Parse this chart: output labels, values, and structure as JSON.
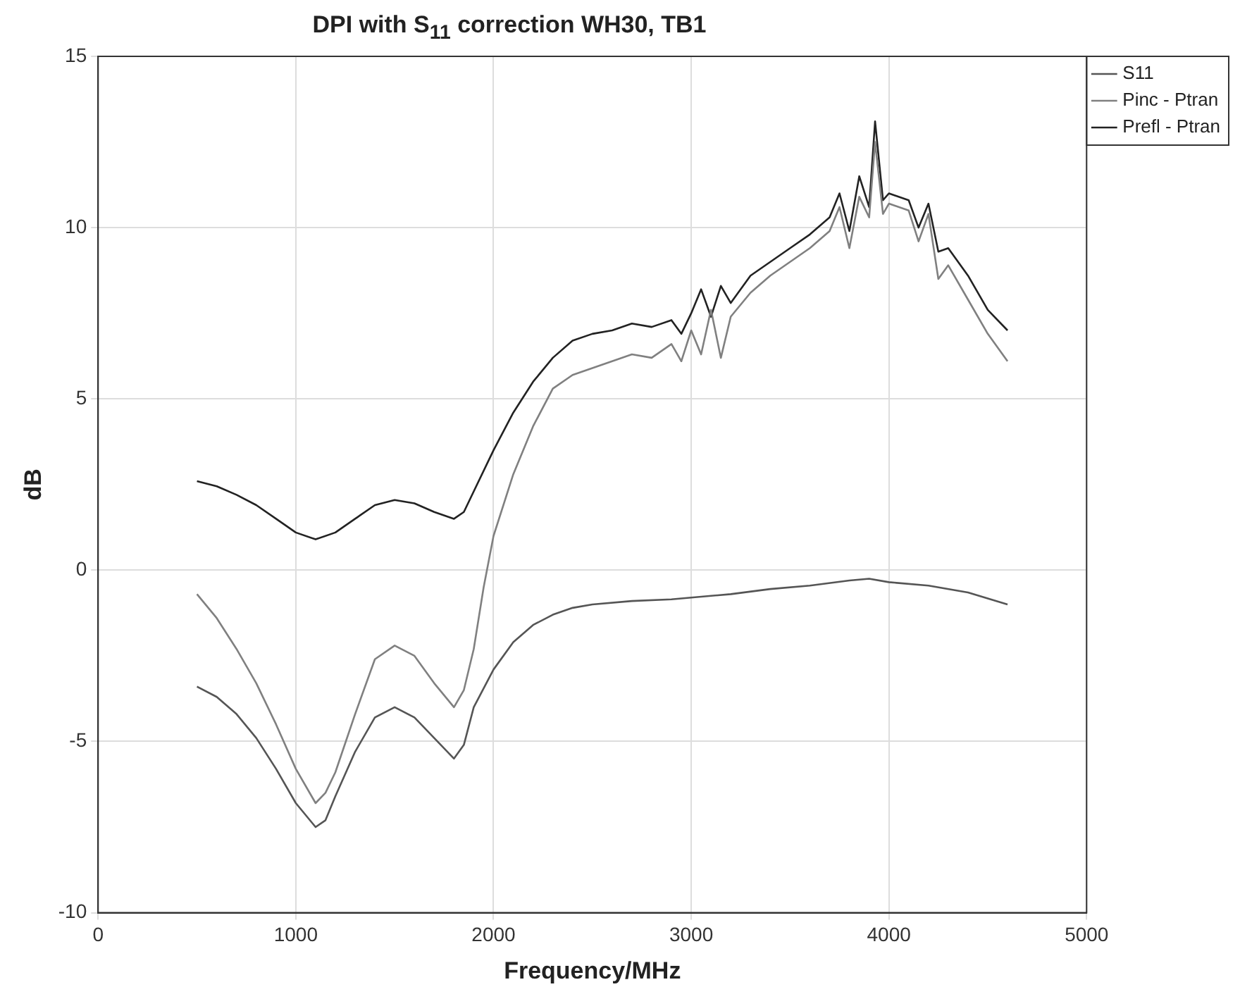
{
  "chart_data": {
    "type": "line",
    "title": "DPI with S$_{11}$ correction WH30, TB1",
    "xlabel": "Frequency/MHz",
    "ylabel": "dB",
    "xlim": [
      0,
      5000
    ],
    "xticks": [
      0,
      1000,
      2000,
      3000,
      4000,
      5000
    ],
    "ylim": [
      -10,
      15
    ],
    "yticks": [
      -10,
      -5,
      0,
      5,
      10,
      15
    ],
    "grid": true,
    "legend": "top right",
    "series": [
      {
        "name": "S11",
        "color": "#555555",
        "x": [
          500,
          600,
          700,
          800,
          900,
          1000,
          1100,
          1150,
          1200,
          1300,
          1400,
          1500,
          1600,
          1700,
          1800,
          1850,
          1900,
          2000,
          2100,
          2200,
          2300,
          2400,
          2500,
          2700,
          2900,
          3000,
          3200,
          3400,
          3600,
          3800,
          3900,
          4000,
          4200,
          4400,
          4600
        ],
        "values": [
          -3.4,
          -3.7,
          -4.2,
          -4.9,
          -5.8,
          -6.8,
          -7.5,
          -7.3,
          -6.6,
          -5.3,
          -4.3,
          -4.0,
          -4.3,
          -4.9,
          -5.5,
          -5.1,
          -4.0,
          -2.9,
          -2.1,
          -1.6,
          -1.3,
          -1.1,
          -1.0,
          -0.9,
          -0.85,
          -0.8,
          -0.7,
          -0.55,
          -0.45,
          -0.3,
          -0.25,
          -0.35,
          -0.45,
          -0.65,
          -1.0
        ]
      },
      {
        "name": "Pinc - Ptran",
        "color": "#808080",
        "x": [
          500,
          600,
          700,
          800,
          900,
          1000,
          1100,
          1150,
          1200,
          1300,
          1400,
          1500,
          1600,
          1700,
          1800,
          1850,
          1900,
          1950,
          2000,
          2100,
          2200,
          2300,
          2400,
          2500,
          2600,
          2700,
          2800,
          2900,
          2950,
          3000,
          3050,
          3100,
          3150,
          3200,
          3300,
          3400,
          3500,
          3600,
          3700,
          3750,
          3800,
          3850,
          3900,
          3930,
          3970,
          4000,
          4100,
          4150,
          4200,
          4250,
          4300,
          4400,
          4500,
          4600
        ],
        "values": [
          -0.7,
          -1.4,
          -2.3,
          -3.3,
          -4.5,
          -5.8,
          -6.8,
          -6.5,
          -5.9,
          -4.2,
          -2.6,
          -2.2,
          -2.5,
          -3.3,
          -4.0,
          -3.5,
          -2.3,
          -0.5,
          1.0,
          2.8,
          4.2,
          5.3,
          5.7,
          5.9,
          6.1,
          6.3,
          6.2,
          6.6,
          6.1,
          7.0,
          6.3,
          7.6,
          6.2,
          7.4,
          8.1,
          8.6,
          9.0,
          9.4,
          9.9,
          10.6,
          9.4,
          10.9,
          10.3,
          12.5,
          10.4,
          10.7,
          10.5,
          9.6,
          10.4,
          8.5,
          8.9,
          7.9,
          6.9,
          6.1
        ]
      },
      {
        "name": "Prefl - Ptran",
        "color": "#222222",
        "x": [
          500,
          600,
          700,
          800,
          900,
          1000,
          1100,
          1200,
          1300,
          1400,
          1500,
          1600,
          1700,
          1800,
          1850,
          1900,
          2000,
          2100,
          2200,
          2300,
          2400,
          2500,
          2600,
          2700,
          2800,
          2900,
          2950,
          3000,
          3050,
          3100,
          3150,
          3200,
          3300,
          3400,
          3500,
          3600,
          3700,
          3750,
          3800,
          3850,
          3900,
          3930,
          3970,
          4000,
          4100,
          4150,
          4200,
          4250,
          4300,
          4400,
          4500,
          4600
        ],
        "values": [
          2.6,
          2.45,
          2.2,
          1.9,
          1.5,
          1.1,
          0.9,
          1.1,
          1.5,
          1.9,
          2.05,
          1.95,
          1.7,
          1.5,
          1.7,
          2.3,
          3.5,
          4.6,
          5.5,
          6.2,
          6.7,
          6.9,
          7.0,
          7.2,
          7.1,
          7.3,
          6.9,
          7.5,
          8.2,
          7.4,
          8.3,
          7.8,
          8.6,
          9.0,
          9.4,
          9.8,
          10.3,
          11.0,
          9.9,
          11.5,
          10.6,
          13.1,
          10.8,
          11.0,
          10.8,
          10.0,
          10.7,
          9.3,
          9.4,
          8.6,
          7.6,
          7.0
        ]
      }
    ]
  }
}
